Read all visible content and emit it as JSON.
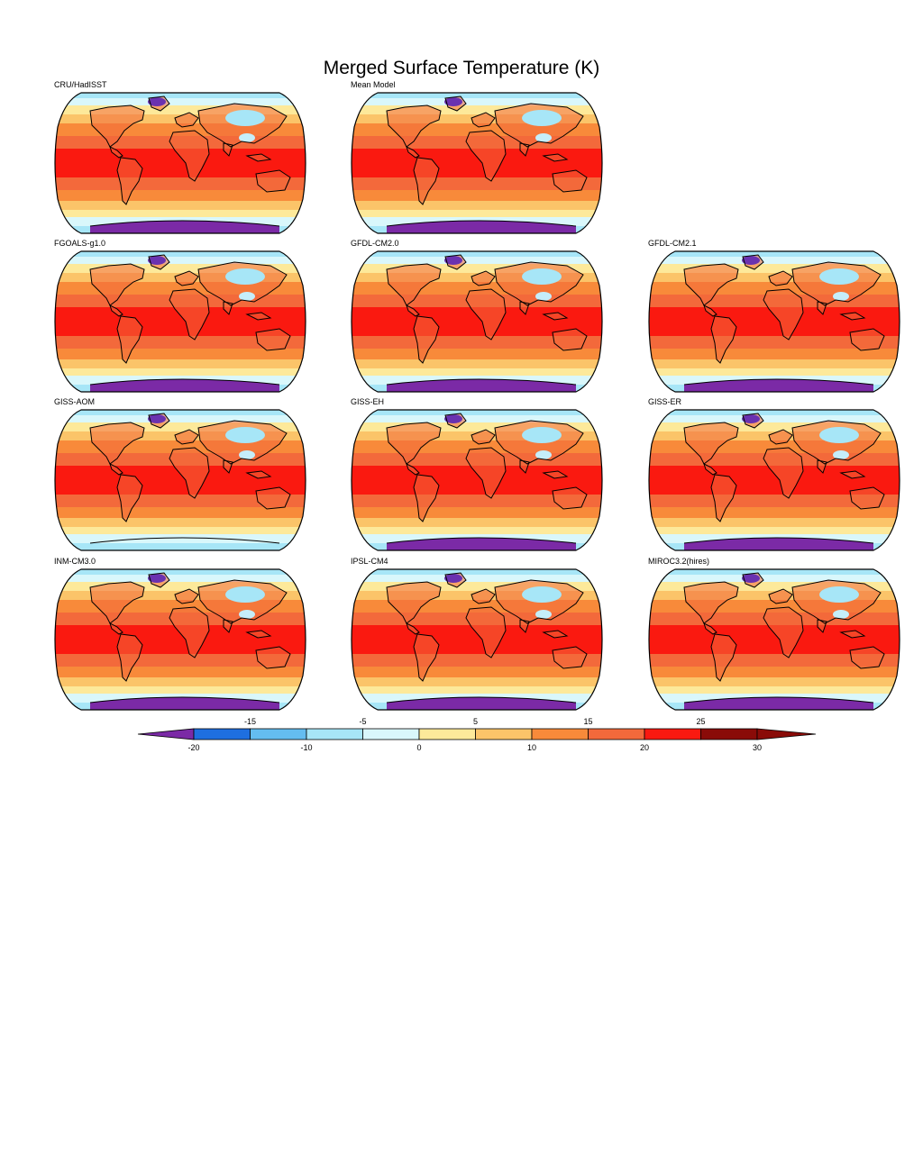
{
  "title": "Merged Surface Temperature (K)",
  "panels": [
    {
      "label": "CRU/HadISST",
      "antarctica_land_band": "violet"
    },
    {
      "label": "Mean Model",
      "antarctica_land_band": "violet"
    },
    {
      "label": "FGOALS-g1.0",
      "antarctica_land_band": "violet"
    },
    {
      "label": "GFDL-CM2.0",
      "antarctica_land_band": "violet"
    },
    {
      "label": "GFDL-CM2.1",
      "antarctica_land_band": "violet"
    },
    {
      "label": "GISS-AOM",
      "antarctica_land_band": "none"
    },
    {
      "label": "GISS-EH",
      "antarctica_land_band": "violet"
    },
    {
      "label": "GISS-ER",
      "antarctica_land_band": "violet"
    },
    {
      "label": "INM-CM3.0",
      "antarctica_land_band": "violet"
    },
    {
      "label": "IPSL-CM4",
      "antarctica_land_band": "violet"
    },
    {
      "label": "MIROC3.2(hires)",
      "antarctica_land_band": "violet"
    }
  ],
  "colorbar": {
    "levels": [
      -20,
      -15,
      -10,
      -5,
      0,
      5,
      10,
      15,
      20,
      25,
      30
    ],
    "labels_top": [
      "-15",
      "-5",
      "5",
      "15",
      "25"
    ],
    "labels_bottom": [
      "-20",
      "-10",
      "0",
      "10",
      "20",
      "30"
    ],
    "colors": [
      "#7b2aa6",
      "#1e6fe0",
      "#64bdf0",
      "#a7e6f7",
      "#d9f7fb",
      "#fde99a",
      "#fbc469",
      "#f88a3a",
      "#f3693b",
      "#fa1910",
      "#8a0b08"
    ]
  },
  "zone_colors": {
    "polar_ocean": "#d9f7fb",
    "cool": "#fde99a",
    "mild": "#fbc469",
    "warm": "#f88a3a",
    "warmer": "#f3693b",
    "tropical": "#fa1910",
    "antarctica": "#7b2aa6",
    "land_cold": "#a7e6f7"
  }
}
